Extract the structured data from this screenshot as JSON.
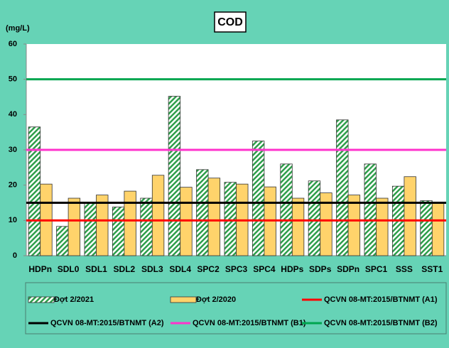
{
  "chart_data": {
    "type": "bar",
    "title": "COD",
    "y_label": "(mg/L)",
    "categories": [
      "HDPn",
      "SDL0",
      "SDL1",
      "SDL2",
      "SDL3",
      "SDL4",
      "SPC2",
      "SPC3",
      "SPC4",
      "HDPs",
      "SDPs",
      "SDPn",
      "SPC1",
      "SSS",
      "SST1"
    ],
    "series": [
      {
        "name": "Đợt 2/2021",
        "color": "#2e9e4a",
        "pattern": "hatch",
        "values": [
          36.5,
          8.3,
          15,
          13.8,
          16.3,
          45.2,
          24.4,
          20.8,
          32.5,
          26,
          21.2,
          38.5,
          26,
          19.7,
          15.6
        ]
      },
      {
        "name": "Đợt 2/2020",
        "color": "#ffd36b",
        "pattern": "solid",
        "values": [
          20.3,
          16.3,
          17.2,
          18.3,
          22.8,
          19.4,
          22,
          20.3,
          19.5,
          16.3,
          17.8,
          17.2,
          16.3,
          22.4,
          15.2
        ]
      }
    ],
    "reference_lines": [
      {
        "name": "QCVN 08-MT:2015/BTNMT (A1)",
        "color": "#ff0000",
        "value": 10
      },
      {
        "name": "QCVN 08-MT:2015/BTNMT (A2)",
        "color": "#000000",
        "value": 15
      },
      {
        "name": "QCVN 08-MT:2015/BTNMT (B1)",
        "color": "#ff33cc",
        "value": 30
      },
      {
        "name": "QCVN 08-MT:2015/BTNMT (B2)",
        "color": "#00a650",
        "value": 50
      }
    ],
    "ylim": [
      0,
      60
    ],
    "yticks": [
      0,
      10,
      20,
      30,
      40,
      50,
      60
    ],
    "grid": false,
    "legend": "bottom"
  }
}
